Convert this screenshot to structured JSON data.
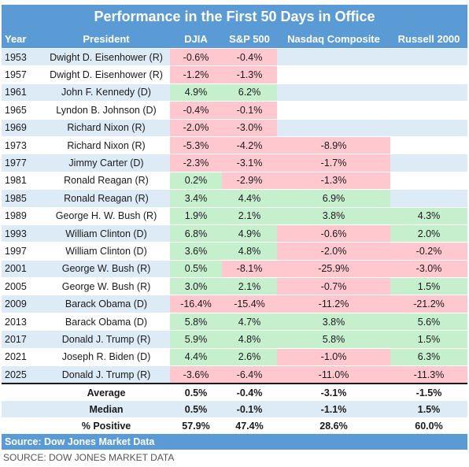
{
  "title": "Performance in the First 50 Days in Office",
  "columns": [
    "Year",
    "President",
    "DJIA",
    "S&P 500",
    "Nasdaq Composite",
    "Russell 2000"
  ],
  "rows": [
    [
      "1953",
      "Dwight D. Eisenhower (R)",
      "-0.6%",
      "-0.4%",
      "",
      ""
    ],
    [
      "1957",
      "Dwight D. Eisenhower (R)",
      "-1.2%",
      "-1.3%",
      "",
      ""
    ],
    [
      "1961",
      "John F. Kennedy (D)",
      "4.9%",
      "6.2%",
      "",
      ""
    ],
    [
      "1965",
      "Lyndon B. Johnson (D)",
      "-0.4%",
      "-0.1%",
      "",
      ""
    ],
    [
      "1969",
      "Richard Nixon (R)",
      "-2.0%",
      "-3.0%",
      "",
      ""
    ],
    [
      "1973",
      "Richard Nixon (R)",
      "-5.3%",
      "-4.2%",
      "-8.9%",
      ""
    ],
    [
      "1977",
      "Jimmy Carter (D)",
      "-2.3%",
      "-3.1%",
      "-1.7%",
      ""
    ],
    [
      "1981",
      "Ronald Reagan (R)",
      "0.2%",
      "-2.9%",
      "-1.3%",
      ""
    ],
    [
      "1985",
      "Ronald Reagan (R)",
      "3.4%",
      "4.4%",
      "6.9%",
      ""
    ],
    [
      "1989",
      "George H. W. Bush (R)",
      "1.9%",
      "2.1%",
      "3.8%",
      "4.3%"
    ],
    [
      "1993",
      "William Clinton (D)",
      "6.8%",
      "4.9%",
      "-0.6%",
      "2.0%"
    ],
    [
      "1997",
      "William Clinton (D)",
      "3.6%",
      "4.8%",
      "-2.0%",
      "-0.2%"
    ],
    [
      "2001",
      "George W. Bush (R)",
      "0.5%",
      "-8.1%",
      "-25.9%",
      "-3.0%"
    ],
    [
      "2005",
      "George W. Bush (R)",
      "3.0%",
      "2.1%",
      "-0.7%",
      "1.5%"
    ],
    [
      "2009",
      "Barack Obama (D)",
      "-16.4%",
      "-15.4%",
      "-11.2%",
      "-21.2%"
    ],
    [
      "2013",
      "Barack Obama (D)",
      "5.8%",
      "4.7%",
      "3.8%",
      "5.6%"
    ],
    [
      "2017",
      "Donald J. Trump (R)",
      "5.9%",
      "4.8%",
      "5.8%",
      "1.5%"
    ],
    [
      "2021",
      "Joseph R. Biden (D)",
      "4.4%",
      "2.6%",
      "-1.0%",
      "6.3%"
    ],
    [
      "2025",
      "Donald J. Trump (R)",
      "-3.6%",
      "-6.4%",
      "-11.0%",
      "-11.3%"
    ]
  ],
  "summary": [
    [
      "Average",
      "0.5%",
      "-0.4%",
      "-3.1%",
      "-1.5%"
    ],
    [
      "Median",
      "0.5%",
      "-0.1%",
      "-1.1%",
      "1.5%"
    ],
    [
      "% Positive",
      "57.9%",
      "47.4%",
      "28.6%",
      "60.0%"
    ]
  ],
  "source_bar": "Source: Dow Jones Market Data",
  "caption": "SOURCE: DOW JONES MARKET DATA",
  "colors": {
    "header_blue": "#5b9bd5",
    "row_stripe": "#ddebf7",
    "positive_green": "#c6efce",
    "negative_red": "#ffc7ce"
  }
}
